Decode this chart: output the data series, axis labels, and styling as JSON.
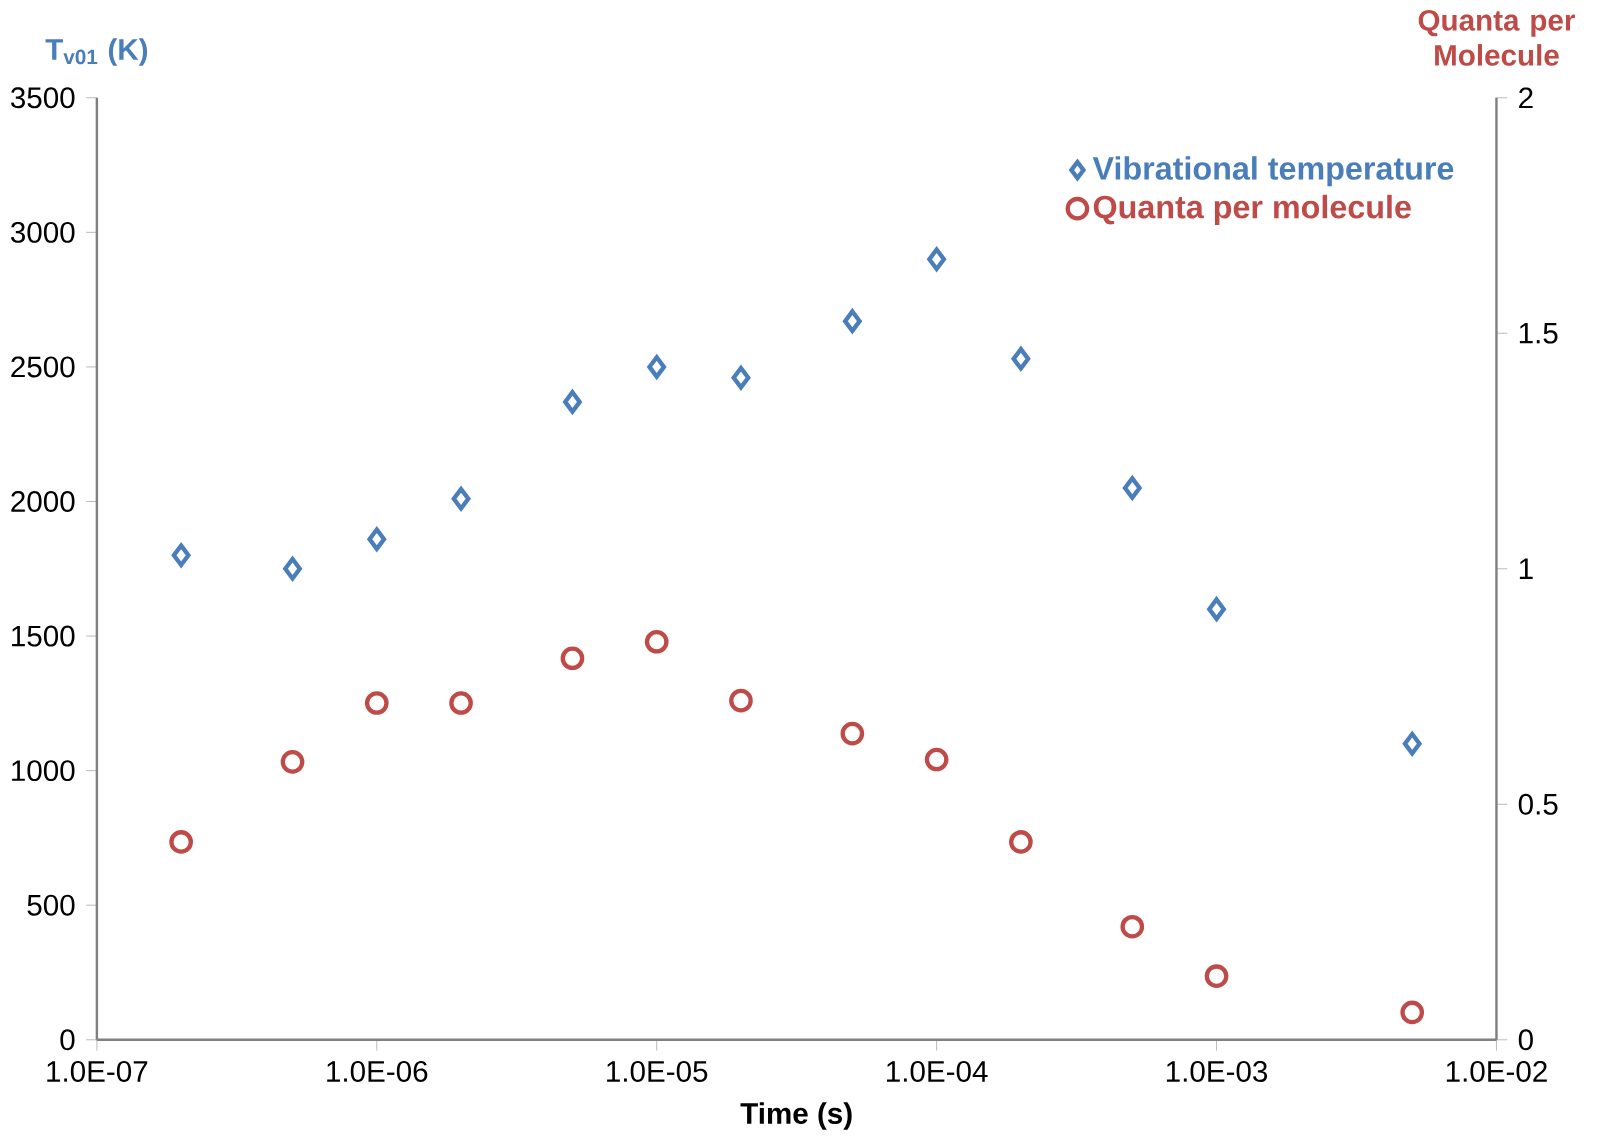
{
  "chart_data": {
    "type": "scatter",
    "xlabel": "Time (s)",
    "ylabel": "T$_{v01}$ (K)",
    "y2label": "Quanta per Molecule",
    "x": [
      2e-07,
      5e-07,
      1e-06,
      2e-06,
      5e-06,
      1e-05,
      2e-05,
      5e-05,
      0.0001,
      0.0002,
      0.0005,
      0.001,
      0.005
    ],
    "series": [
      {
        "name": "Vibrational temperature",
        "color": "#4a7ebb",
        "marker": "diamond",
        "values": [
          1800,
          1750,
          1860,
          2010,
          2370,
          2500,
          2460,
          2670,
          2900,
          2530,
          2050,
          1600,
          1100
        ]
      },
      {
        "name": "Quanta per molecule",
        "color": "#be4b48",
        "marker": "circle",
        "axis": "y2",
        "values": [
          0.42,
          0.59,
          0.715,
          0.715,
          0.81,
          0.845,
          0.72,
          0.65,
          0.595,
          0.42,
          0.24,
          0.135,
          0.058
        ]
      }
    ],
    "log": "x",
    "xlim": [
      1e-07,
      0.01
    ],
    "xticks": [
      {
        "value": 1e-07,
        "label": "1.0E-07"
      },
      {
        "value": 1e-06,
        "label": "1.0E-06"
      },
      {
        "value": 1e-05,
        "label": "1.0E-05"
      },
      {
        "value": 0.0001,
        "label": "1.0E-04"
      },
      {
        "value": 0.001,
        "label": "1.0E-03"
      },
      {
        "value": 0.01,
        "label": "1.0E-02"
      }
    ],
    "ylim": [
      0,
      3500
    ],
    "yticks": [
      0,
      500,
      1000,
      1500,
      2000,
      2500,
      3000,
      3500
    ],
    "y2lim": [
      0,
      2
    ],
    "y2ticks": [
      0,
      0.5,
      1,
      1.5,
      2
    ],
    "grid": false,
    "legend": "top right"
  }
}
